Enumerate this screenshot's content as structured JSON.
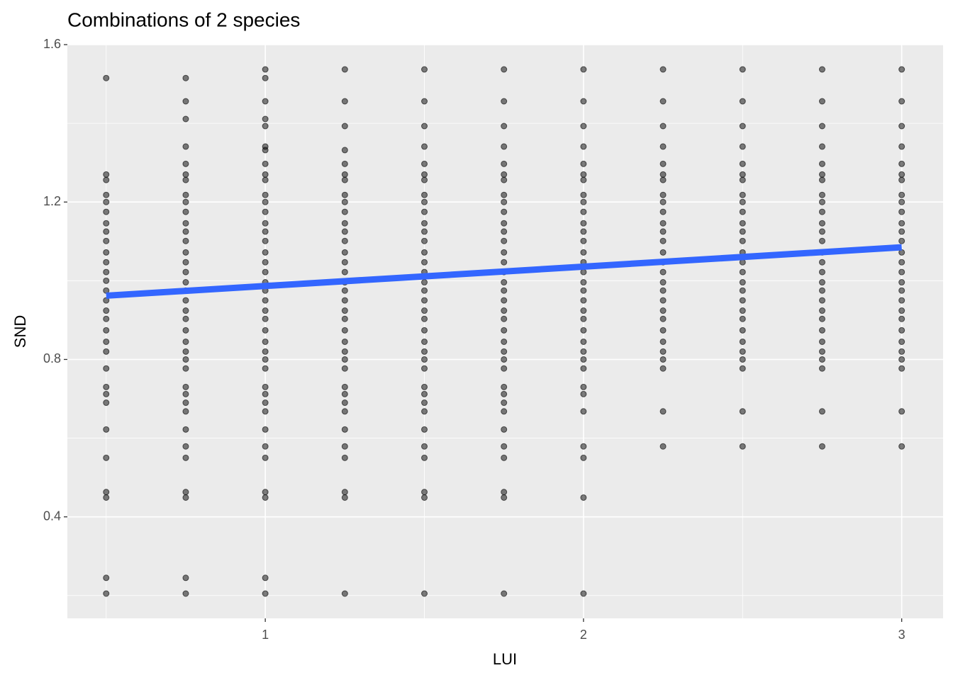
{
  "chart_data": {
    "type": "scatter",
    "title": "Combinations of 2 species",
    "x_label": "LUI",
    "y_label": "SND",
    "xlim": [
      0.378,
      3.13
    ],
    "ylim": [
      0.142,
      1.6
    ],
    "xticks": [
      1,
      2,
      3
    ],
    "yticks": [
      0.4,
      0.8,
      1.2,
      1.6
    ],
    "xminor": [
      0.5,
      1.5,
      2.5
    ],
    "yminor": [
      0.2,
      0.6,
      1.0,
      1.4
    ],
    "grid": true,
    "point_color": "#000000",
    "trend": {
      "color": "#3366FF",
      "x": [
        0.5,
        3
      ],
      "y": [
        0.962,
        1.085
      ]
    },
    "columns": [
      {
        "x": 0.5,
        "values": [
          1.515,
          1.27,
          1.256,
          1.218,
          1.2,
          1.175,
          1.146,
          1.125,
          1.101,
          1.072,
          1.047,
          1.022,
          1.0,
          0.975,
          0.95,
          0.924,
          0.903,
          0.874,
          0.845,
          0.82,
          0.777,
          0.73,
          0.712,
          0.69,
          0.622,
          0.55,
          0.463,
          0.449,
          0.245,
          0.205
        ]
      },
      {
        "x": 0.75,
        "values": [
          1.515,
          1.456,
          1.411,
          1.341,
          1.297,
          1.27,
          1.256,
          1.218,
          1.2,
          1.175,
          1.146,
          1.125,
          1.101,
          1.072,
          1.047,
          1.022,
          0.996,
          0.975,
          0.95,
          0.924,
          0.903,
          0.874,
          0.845,
          0.82,
          0.8,
          0.777,
          0.73,
          0.712,
          0.69,
          0.668,
          0.622,
          0.579,
          0.55,
          0.463,
          0.449,
          0.245,
          0.205
        ]
      },
      {
        "x": 1,
        "values": [
          1.537,
          1.515,
          1.456,
          1.411,
          1.393,
          1.341,
          1.332,
          1.297,
          1.27,
          1.256,
          1.218,
          1.2,
          1.175,
          1.146,
          1.125,
          1.101,
          1.072,
          1.047,
          1.022,
          0.996,
          0.975,
          0.95,
          0.924,
          0.903,
          0.874,
          0.845,
          0.82,
          0.8,
          0.777,
          0.73,
          0.712,
          0.69,
          0.668,
          0.622,
          0.579,
          0.55,
          0.463,
          0.449,
          0.245,
          0.205
        ]
      },
      {
        "x": 1.25,
        "values": [
          1.537,
          1.456,
          1.393,
          1.332,
          1.297,
          1.27,
          1.256,
          1.218,
          1.2,
          1.175,
          1.146,
          1.125,
          1.101,
          1.072,
          1.047,
          1.022,
          0.996,
          0.975,
          0.95,
          0.924,
          0.903,
          0.874,
          0.845,
          0.82,
          0.8,
          0.777,
          0.73,
          0.712,
          0.69,
          0.668,
          0.622,
          0.579,
          0.55,
          0.463,
          0.449,
          0.205
        ]
      },
      {
        "x": 1.5,
        "values": [
          1.537,
          1.456,
          1.393,
          1.341,
          1.297,
          1.27,
          1.256,
          1.218,
          1.2,
          1.175,
          1.146,
          1.125,
          1.101,
          1.072,
          1.047,
          1.022,
          0.996,
          0.975,
          0.95,
          0.924,
          0.903,
          0.874,
          0.845,
          0.82,
          0.8,
          0.777,
          0.73,
          0.712,
          0.69,
          0.668,
          0.622,
          0.579,
          0.55,
          0.463,
          0.449,
          0.205
        ]
      },
      {
        "x": 1.75,
        "values": [
          1.537,
          1.456,
          1.393,
          1.341,
          1.297,
          1.27,
          1.256,
          1.218,
          1.2,
          1.175,
          1.146,
          1.125,
          1.101,
          1.072,
          1.047,
          1.022,
          0.996,
          0.975,
          0.95,
          0.924,
          0.903,
          0.874,
          0.845,
          0.82,
          0.8,
          0.777,
          0.73,
          0.712,
          0.69,
          0.668,
          0.622,
          0.579,
          0.55,
          0.463,
          0.449,
          0.205
        ]
      },
      {
        "x": 2,
        "values": [
          1.537,
          1.456,
          1.393,
          1.341,
          1.297,
          1.27,
          1.256,
          1.218,
          1.2,
          1.175,
          1.146,
          1.125,
          1.101,
          1.072,
          1.047,
          1.022,
          0.996,
          0.975,
          0.95,
          0.924,
          0.903,
          0.874,
          0.845,
          0.82,
          0.8,
          0.777,
          0.73,
          0.712,
          0.668,
          0.579,
          0.55,
          0.449,
          0.205
        ]
      },
      {
        "x": 2.25,
        "values": [
          1.537,
          1.456,
          1.393,
          1.341,
          1.297,
          1.27,
          1.256,
          1.218,
          1.2,
          1.175,
          1.146,
          1.125,
          1.101,
          1.072,
          1.047,
          1.022,
          0.996,
          0.975,
          0.95,
          0.924,
          0.903,
          0.874,
          0.845,
          0.82,
          0.8,
          0.777,
          0.668,
          0.579
        ]
      },
      {
        "x": 2.5,
        "values": [
          1.537,
          1.456,
          1.393,
          1.341,
          1.297,
          1.27,
          1.256,
          1.218,
          1.2,
          1.175,
          1.146,
          1.125,
          1.101,
          1.072,
          1.047,
          1.022,
          0.996,
          0.975,
          0.95,
          0.924,
          0.903,
          0.874,
          0.845,
          0.82,
          0.8,
          0.777,
          0.668,
          0.579
        ]
      },
      {
        "x": 2.75,
        "values": [
          1.537,
          1.456,
          1.393,
          1.341,
          1.297,
          1.27,
          1.256,
          1.218,
          1.2,
          1.175,
          1.146,
          1.125,
          1.101,
          1.072,
          1.047,
          1.022,
          0.996,
          0.975,
          0.95,
          0.924,
          0.903,
          0.874,
          0.845,
          0.82,
          0.8,
          0.777,
          0.668,
          0.579
        ]
      },
      {
        "x": 3,
        "values": [
          1.537,
          1.456,
          1.393,
          1.341,
          1.297,
          1.27,
          1.256,
          1.218,
          1.2,
          1.175,
          1.146,
          1.125,
          1.101,
          1.072,
          1.047,
          1.022,
          0.996,
          0.975,
          0.95,
          0.924,
          0.903,
          0.874,
          0.845,
          0.82,
          0.8,
          0.777,
          0.668,
          0.579
        ]
      }
    ]
  }
}
